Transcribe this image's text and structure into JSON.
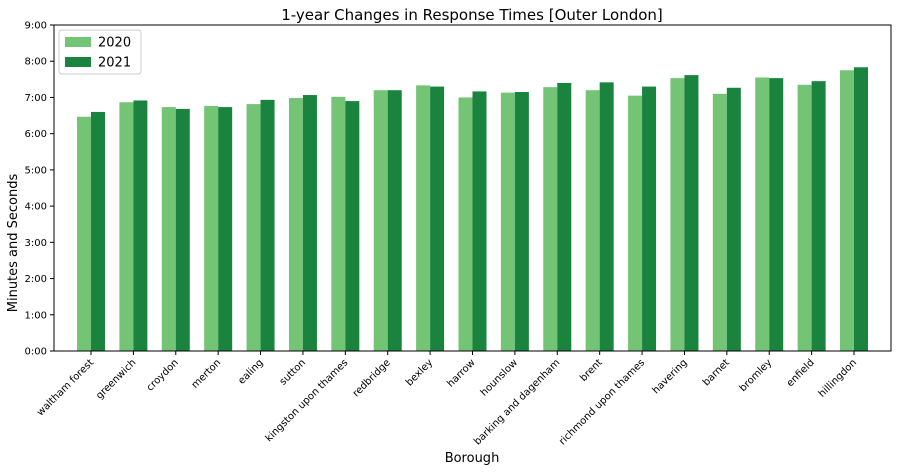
{
  "chart_data": {
    "type": "bar",
    "title": "1-year Changes in Response Times [Outer London]",
    "xlabel": "Borough",
    "ylabel": "Minutes and Seconds",
    "ylim": [
      0,
      540
    ],
    "y_unit": "seconds",
    "yticks": [
      0,
      60,
      120,
      180,
      240,
      300,
      360,
      420,
      480,
      540
    ],
    "ytick_labels": [
      "0:00",
      "1:00",
      "2:00",
      "3:00",
      "4:00",
      "5:00",
      "6:00",
      "7:00",
      "8:00",
      "9:00"
    ],
    "grid": false,
    "legend_position": "top-left",
    "categories": [
      "waltham forest",
      "greenwich",
      "croydon",
      "merton",
      "ealing",
      "sutton",
      "kingston upon thames",
      "redbridge",
      "bexley",
      "harrow",
      "hounslow",
      "barking and dagenham",
      "brent",
      "richmond upon thames",
      "havering",
      "barnet",
      "bromley",
      "enfield",
      "hillingdon"
    ],
    "series": [
      {
        "name": "2020",
        "color": "#74c476",
        "values": [
          388,
          412,
          404,
          406,
          409,
          419,
          421,
          432,
          440,
          420,
          428,
          437,
          432,
          423,
          452,
          426,
          453,
          441,
          465
        ]
      },
      {
        "name": "2021",
        "color": "#1a843f",
        "values": [
          396,
          415,
          401,
          404,
          416,
          424,
          414,
          432,
          438,
          430,
          429,
          444,
          445,
          438,
          457,
          436,
          452,
          447,
          470
        ]
      }
    ]
  }
}
